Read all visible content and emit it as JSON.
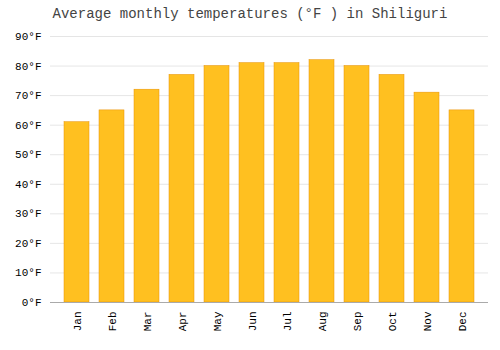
{
  "chart_data": {
    "type": "bar",
    "title": "Average monthly temperatures (°F ) in Shiliguri",
    "categories": [
      "Jan",
      "Feb",
      "Mar",
      "Apr",
      "May",
      "Jun",
      "Jul",
      "Aug",
      "Sep",
      "Oct",
      "Nov",
      "Dec"
    ],
    "values": [
      61,
      65,
      72,
      77,
      80,
      81,
      81,
      82,
      80,
      77,
      71,
      65
    ],
    "color": "#FFC020",
    "ylim": [
      0,
      90
    ],
    "yticks": [
      {
        "value": 0,
        "label": "0°F"
      },
      {
        "value": 10,
        "label": "10°F"
      },
      {
        "value": 20,
        "label": "20°F"
      },
      {
        "value": 30,
        "label": "30°F"
      },
      {
        "value": 40,
        "label": "40°F"
      },
      {
        "value": 50,
        "label": "50°F"
      },
      {
        "value": 60,
        "label": "60°F"
      },
      {
        "value": 70,
        "label": "70°F"
      },
      {
        "value": 80,
        "label": "80°F"
      },
      {
        "value": 90,
        "label": "90°F"
      }
    ],
    "grid": true
  }
}
